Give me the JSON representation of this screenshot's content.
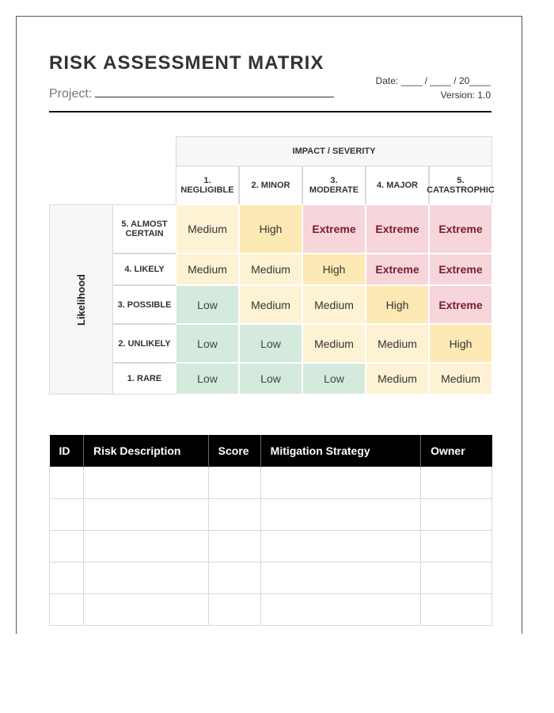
{
  "header": {
    "title": "RISK ASSESSMENT MATRIX",
    "project_label": "Project:",
    "date_label": "Date: ____ / ____ / 20____",
    "version_label": "Version: 1.0"
  },
  "matrix": {
    "impact_header": "IMPACT / SEVERITY",
    "likelihood_label": "Likelihood",
    "impact_levels": [
      "1. NEGLIGIBLE",
      "2. MINOR",
      "3. MODERATE",
      "4. MAJOR",
      "5. CATASTROPHIC"
    ],
    "rows": [
      {
        "label": "5. ALMOST CERTAIN",
        "cells": [
          "Medium",
          "High",
          "Extreme",
          "Extreme",
          "Extreme"
        ]
      },
      {
        "label": "4. LIKELY",
        "cells": [
          "Medium",
          "Medium",
          "High",
          "Extreme",
          "Extreme"
        ]
      },
      {
        "label": "3. POSSIBLE",
        "cells": [
          "Low",
          "Medium",
          "Medium",
          "High",
          "Extreme"
        ]
      },
      {
        "label": "2. UNLIKELY",
        "cells": [
          "Low",
          "Low",
          "Medium",
          "Medium",
          "High"
        ]
      },
      {
        "label": "1. RARE",
        "cells": [
          "Low",
          "Low",
          "Low",
          "Medium",
          "Medium"
        ]
      }
    ],
    "level_colors": {
      "Low": "#d4eadc",
      "Medium": "#fdf3d4",
      "High": "#fde9b3",
      "Extreme": "#f6d6db"
    }
  },
  "register": {
    "columns": [
      "ID",
      "Risk Description",
      "Score",
      "Mitigation Strategy",
      "Owner"
    ],
    "rows": [
      [
        "",
        "",
        "",
        "",
        ""
      ],
      [
        "",
        "",
        "",
        "",
        ""
      ],
      [
        "",
        "",
        "",
        "",
        ""
      ],
      [
        "",
        "",
        "",
        "",
        ""
      ],
      [
        "",
        "",
        "",
        "",
        ""
      ]
    ]
  }
}
